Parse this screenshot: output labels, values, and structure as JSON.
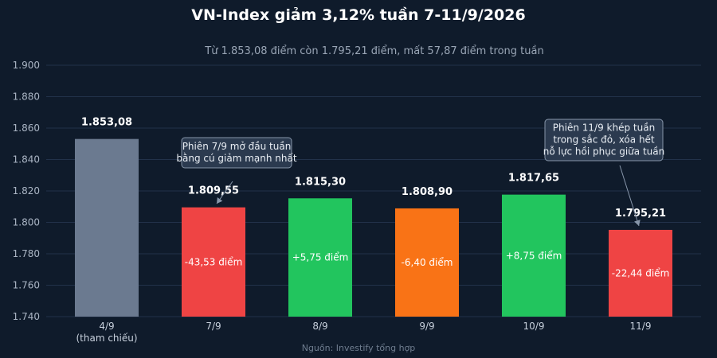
{
  "chart_data": {
    "type": "bar",
    "title": "VN-Index giảm 3,12% tuần 7-11/9/2026",
    "subtitle": "Từ 1.853,08 điểm còn 1.795,21 điểm, mất 57,87 điểm trong tuần",
    "categories": [
      "4/9",
      "7/9",
      "8/9",
      "9/9",
      "10/9",
      "11/9"
    ],
    "category_sublabels": [
      "(tham chiếu)",
      "",
      "",
      "",
      "",
      ""
    ],
    "values": [
      1853.08,
      1809.55,
      1815.3,
      1808.9,
      1817.65,
      1795.21
    ],
    "value_labels": [
      "1.853,08",
      "1.809,55",
      "1.815,30",
      "1.808,90",
      "1.817,65",
      "1.795,21"
    ],
    "change_labels": [
      "",
      "-43,53 điểm",
      "+5,75 điểm",
      "-6,40 điểm",
      "+8,75 điểm",
      "-22,44 điểm"
    ],
    "bar_colors": [
      "#6b7a90",
      "#ef4444",
      "#22c55e",
      "#f97316",
      "#22c55e",
      "#ef4444"
    ],
    "ylim": [
      1740,
      1900
    ],
    "yticks": [
      1740,
      1760,
      1780,
      1800,
      1820,
      1840,
      1860,
      1880,
      1900
    ],
    "ytick_labels": [
      "1.740",
      "1.760",
      "1.780",
      "1.800",
      "1.820",
      "1.840",
      "1.860",
      "1.880",
      "1.900"
    ],
    "grid": true,
    "xlabel": "",
    "ylabel": "",
    "annotations": [
      {
        "category_index": 1,
        "lines": [
          "Phiên 7/9 mở đầu tuần",
          "bằng cú giảm mạnh nhất"
        ]
      },
      {
        "category_index": 5,
        "lines": [
          "Phiên 11/9 khép tuần",
          "trong sắc đỏ, xóa hết",
          "nỗ lực hồi phục giữa tuần"
        ]
      }
    ],
    "source": "Nguồn: Investify tổng hợp"
  },
  "colors": {
    "background": "#0f1b2b",
    "grid": "#22324a",
    "annotation_box": "#2b3a4f",
    "annotation_border": "#8796aa"
  }
}
